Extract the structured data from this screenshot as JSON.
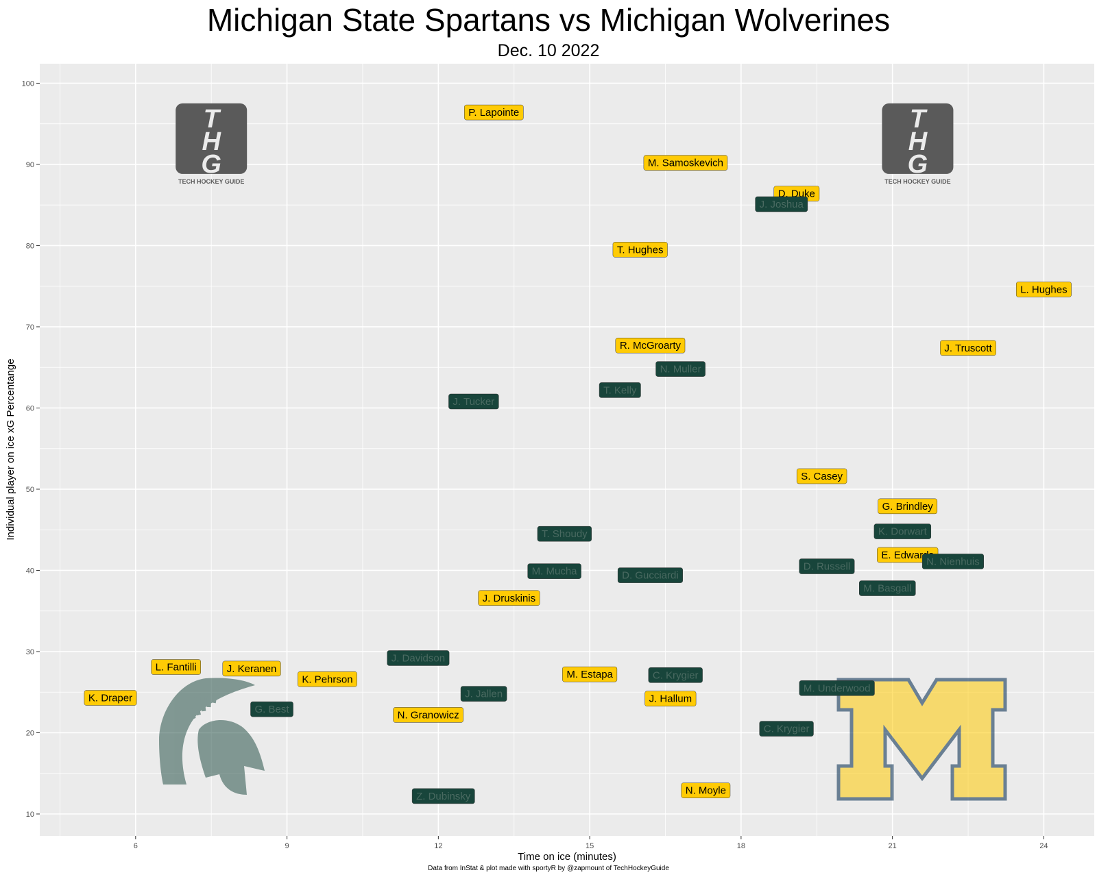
{
  "chart_data": {
    "type": "scatter",
    "title": "Michigan State Spartans vs Michigan Wolverines",
    "subtitle": "Dec. 10 2022",
    "xlabel": "Time on ice (minutes)",
    "ylabel": "Individual player on ice xG Percentange",
    "caption": "Data from InStat & plot made with sportyR by @zapmount of TechHockeyGuide",
    "xlim": [
      4.1,
      25.0
    ],
    "ylim": [
      7.3,
      102.4
    ],
    "xticks": [
      6,
      9,
      12,
      15,
      18,
      21,
      24
    ],
    "yticks": [
      10,
      20,
      30,
      40,
      50,
      60,
      70,
      80,
      90,
      100
    ],
    "grid": true,
    "colors": {
      "panel": "#ebebeb",
      "grid": "#ffffff",
      "michigan_fill": "#ffcb05",
      "michigan_text": "#000000",
      "msu_fill": "#18453b",
      "msu_text": "#4a6a61"
    },
    "series": [
      {
        "team": "Michigan",
        "points": [
          {
            "label": "P. Lapointe",
            "x": 13.1,
            "y": 96.4
          },
          {
            "label": "M. Samoskevich",
            "x": 16.9,
            "y": 90.2
          },
          {
            "label": "D. Duke",
            "x": 19.1,
            "y": 86.4
          },
          {
            "label": "T. Hughes",
            "x": 16.0,
            "y": 79.5
          },
          {
            "label": "L. Hughes",
            "x": 24.0,
            "y": 74.6
          },
          {
            "label": "J. Truscott",
            "x": 22.5,
            "y": 67.4
          },
          {
            "label": "R. McGroarty",
            "x": 16.2,
            "y": 67.7
          },
          {
            "label": "S. Casey",
            "x": 19.6,
            "y": 51.6
          },
          {
            "label": "G. Brindley",
            "x": 21.3,
            "y": 47.9
          },
          {
            "label": "E. Edwards",
            "x": 21.3,
            "y": 41.9
          },
          {
            "label": "J. Druskinis",
            "x": 13.4,
            "y": 36.6
          },
          {
            "label": "L. Fantilli",
            "x": 6.8,
            "y": 28.1
          },
          {
            "label": "J. Keranen",
            "x": 8.3,
            "y": 27.9
          },
          {
            "label": "K. Pehrson",
            "x": 9.8,
            "y": 26.6
          },
          {
            "label": "K. Draper",
            "x": 5.5,
            "y": 24.3
          },
          {
            "label": "M. Estapa",
            "x": 15.0,
            "y": 27.2
          },
          {
            "label": "J. Hallum",
            "x": 16.6,
            "y": 24.2
          },
          {
            "label": "N. Granowicz",
            "x": 11.8,
            "y": 22.2
          },
          {
            "label": "N. Moyle",
            "x": 17.3,
            "y": 12.9
          }
        ]
      },
      {
        "team": "Michigan State",
        "points": [
          {
            "label": "J. Joshua",
            "x": 18.8,
            "y": 85.1
          },
          {
            "label": "N. Muller",
            "x": 16.8,
            "y": 64.8
          },
          {
            "label": "T. Kelly",
            "x": 15.6,
            "y": 62.2
          },
          {
            "label": "J. Tucker",
            "x": 12.7,
            "y": 60.8
          },
          {
            "label": "T. Shoudy",
            "x": 14.5,
            "y": 44.5
          },
          {
            "label": "K. Dorwart",
            "x": 21.2,
            "y": 44.8
          },
          {
            "label": "N. Nienhuis",
            "x": 22.2,
            "y": 41.1
          },
          {
            "label": "D. Russell",
            "x": 19.7,
            "y": 40.5
          },
          {
            "label": "M. Mucha",
            "x": 14.3,
            "y": 39.9
          },
          {
            "label": "D. Gucciardi",
            "x": 16.2,
            "y": 39.4
          },
          {
            "label": "M. Basgall",
            "x": 20.9,
            "y": 37.8
          },
          {
            "label": "J. Davidson",
            "x": 11.6,
            "y": 29.2
          },
          {
            "label": "C. Krygier",
            "x": 16.7,
            "y": 27.1
          },
          {
            "label": "M. Underwood",
            "x": 19.9,
            "y": 25.5
          },
          {
            "label": "J. Jallen",
            "x": 12.9,
            "y": 24.8
          },
          {
            "label": "G. Best",
            "x": 8.7,
            "y": 22.9
          },
          {
            "label": "C. Krygier",
            "x": 18.9,
            "y": 20.5
          },
          {
            "label": "Z. Dubinsky",
            "x": 12.1,
            "y": 12.2
          }
        ]
      }
    ],
    "logos": [
      {
        "name": "thg-logo",
        "text": "TECH HOCKEY GUIDE",
        "letters": "THG",
        "x": 7.5,
        "y": 89.5
      },
      {
        "name": "thg-logo",
        "text": "TECH HOCKEY GUIDE",
        "letters": "THG",
        "x": 21.5,
        "y": 89.5
      }
    ]
  }
}
